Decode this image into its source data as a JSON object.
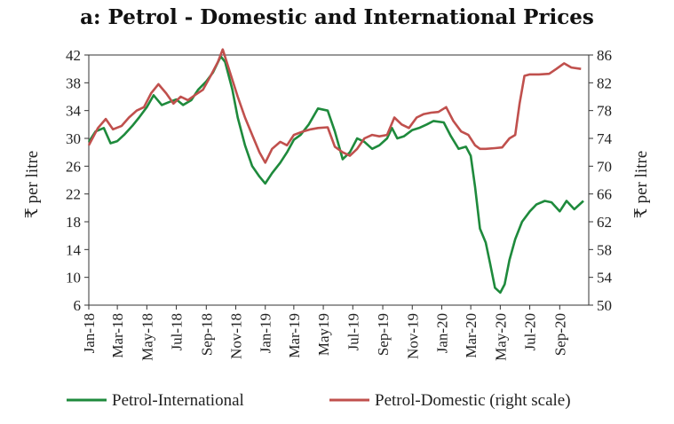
{
  "chart_data": {
    "type": "line",
    "title": "a: Petrol - Domestic and International Prices",
    "ylabel_left": "₹ per litre",
    "ylabel_right": "₹ per litre",
    "ylim_left": [
      6,
      42
    ],
    "ylim_right": [
      50,
      86
    ],
    "yticks_left": [
      6,
      10,
      14,
      18,
      22,
      26,
      30,
      34,
      38,
      42
    ],
    "yticks_right": [
      50,
      54,
      58,
      62,
      66,
      70,
      74,
      78,
      82,
      86
    ],
    "xlim": [
      "2018-01-01",
      "2020-10-31"
    ],
    "x_ticks": [
      "Jan-18",
      "Mar-18",
      "May-18",
      "Jul-18",
      "Sep-18",
      "Nov-18",
      "Jan-19",
      "Mar-19",
      "May19",
      "Jul-19",
      "Sep-19",
      "Nov-19",
      "Jan-20",
      "Mar-20",
      "May-20",
      "Jul-20",
      "Sep-20"
    ],
    "x_tick_dates": [
      "2018-01-01",
      "2018-03-01",
      "2018-05-01",
      "2018-07-01",
      "2018-09-01",
      "2018-11-01",
      "2019-01-01",
      "2019-03-01",
      "2019-05-01",
      "2019-07-01",
      "2019-09-01",
      "2019-11-01",
      "2020-01-01",
      "2020-03-01",
      "2020-05-01",
      "2020-07-01",
      "2020-09-01"
    ],
    "grid": false,
    "legend_position": "bottom",
    "series": [
      {
        "name": "Petrol-International",
        "axis": "left",
        "color": "#1e8a3c",
        "points": [
          [
            "2018-01-01",
            29.5
          ],
          [
            "2018-01-15",
            31.0
          ],
          [
            "2018-02-01",
            31.5
          ],
          [
            "2018-02-15",
            29.3
          ],
          [
            "2018-03-01",
            29.6
          ],
          [
            "2018-03-15",
            30.5
          ],
          [
            "2018-04-01",
            31.8
          ],
          [
            "2018-04-15",
            33.0
          ],
          [
            "2018-05-01",
            34.5
          ],
          [
            "2018-05-15",
            36.2
          ],
          [
            "2018-06-01",
            34.8
          ],
          [
            "2018-06-15",
            35.2
          ],
          [
            "2018-07-01",
            35.6
          ],
          [
            "2018-07-15",
            34.8
          ],
          [
            "2018-08-01",
            35.5
          ],
          [
            "2018-08-15",
            37.0
          ],
          [
            "2018-09-01",
            38.2
          ],
          [
            "2018-09-15",
            39.5
          ],
          [
            "2018-10-01",
            41.8
          ],
          [
            "2018-10-10",
            41.0
          ],
          [
            "2018-10-25",
            37.0
          ],
          [
            "2018-11-05",
            33.0
          ],
          [
            "2018-11-20",
            29.0
          ],
          [
            "2018-12-05",
            26.0
          ],
          [
            "2018-12-20",
            24.5
          ],
          [
            "2019-01-01",
            23.5
          ],
          [
            "2019-01-15",
            25.0
          ],
          [
            "2019-02-01",
            26.5
          ],
          [
            "2019-02-15",
            28.0
          ],
          [
            "2019-03-01",
            29.8
          ],
          [
            "2019-03-15",
            30.5
          ],
          [
            "2019-04-01",
            32.0
          ],
          [
            "2019-04-20",
            34.3
          ],
          [
            "2019-05-10",
            34.0
          ],
          [
            "2019-05-25",
            31.0
          ],
          [
            "2019-06-10",
            27.0
          ],
          [
            "2019-06-25",
            28.0
          ],
          [
            "2019-07-10",
            30.0
          ],
          [
            "2019-07-25",
            29.5
          ],
          [
            "2019-08-10",
            28.5
          ],
          [
            "2019-08-25",
            29.0
          ],
          [
            "2019-09-10",
            30.0
          ],
          [
            "2019-09-20",
            31.5
          ],
          [
            "2019-10-01",
            30.0
          ],
          [
            "2019-10-15",
            30.3
          ],
          [
            "2019-11-01",
            31.2
          ],
          [
            "2019-11-15",
            31.5
          ],
          [
            "2019-12-01",
            32.0
          ],
          [
            "2019-12-15",
            32.5
          ],
          [
            "2020-01-05",
            32.3
          ],
          [
            "2020-01-20",
            30.3
          ],
          [
            "2020-02-05",
            28.5
          ],
          [
            "2020-02-20",
            28.8
          ],
          [
            "2020-03-01",
            27.5
          ],
          [
            "2020-03-10",
            23.0
          ],
          [
            "2020-03-20",
            17.0
          ],
          [
            "2020-04-01",
            15.0
          ],
          [
            "2020-04-10",
            12.0
          ],
          [
            "2020-04-20",
            8.5
          ],
          [
            "2020-05-01",
            7.8
          ],
          [
            "2020-05-10",
            9.0
          ],
          [
            "2020-05-20",
            12.5
          ],
          [
            "2020-06-01",
            15.5
          ],
          [
            "2020-06-15",
            18.0
          ],
          [
            "2020-07-01",
            19.5
          ],
          [
            "2020-07-15",
            20.5
          ],
          [
            "2020-08-01",
            21.0
          ],
          [
            "2020-08-15",
            20.8
          ],
          [
            "2020-09-01",
            19.5
          ],
          [
            "2020-09-15",
            21.0
          ],
          [
            "2020-10-01",
            19.8
          ],
          [
            "2020-10-20",
            21.0
          ]
        ]
      },
      {
        "name": "Petrol-Domestic (right scale)",
        "axis": "right",
        "color": "#c0504d",
        "points": [
          [
            "2018-01-01",
            73.0
          ],
          [
            "2018-01-20",
            75.5
          ],
          [
            "2018-02-05",
            76.8
          ],
          [
            "2018-02-20",
            75.3
          ],
          [
            "2018-03-10",
            75.8
          ],
          [
            "2018-03-25",
            77.0
          ],
          [
            "2018-04-10",
            78.0
          ],
          [
            "2018-04-25",
            78.5
          ],
          [
            "2018-05-10",
            80.5
          ],
          [
            "2018-05-25",
            81.8
          ],
          [
            "2018-06-10",
            80.5
          ],
          [
            "2018-06-25",
            79.0
          ],
          [
            "2018-07-10",
            80.0
          ],
          [
            "2018-07-25",
            79.5
          ],
          [
            "2018-08-10",
            80.3
          ],
          [
            "2018-08-25",
            81.0
          ],
          [
            "2018-09-10",
            83.0
          ],
          [
            "2018-09-25",
            85.0
          ],
          [
            "2018-10-05",
            86.8
          ],
          [
            "2018-10-20",
            83.5
          ],
          [
            "2018-11-05",
            80.0
          ],
          [
            "2018-11-20",
            77.0
          ],
          [
            "2018-12-05",
            74.5
          ],
          [
            "2018-12-20",
            72.0
          ],
          [
            "2019-01-01",
            70.5
          ],
          [
            "2019-01-15",
            72.5
          ],
          [
            "2019-02-01",
            73.5
          ],
          [
            "2019-02-15",
            73.0
          ],
          [
            "2019-03-01",
            74.5
          ],
          [
            "2019-03-20",
            75.0
          ],
          [
            "2019-04-05",
            75.3
          ],
          [
            "2019-04-20",
            75.5
          ],
          [
            "2019-05-10",
            75.6
          ],
          [
            "2019-05-25",
            72.8
          ],
          [
            "2019-06-10",
            72.0
          ],
          [
            "2019-06-25",
            71.5
          ],
          [
            "2019-07-10",
            72.5
          ],
          [
            "2019-07-25",
            74.0
          ],
          [
            "2019-08-10",
            74.5
          ],
          [
            "2019-08-25",
            74.3
          ],
          [
            "2019-09-10",
            74.5
          ],
          [
            "2019-09-25",
            77.0
          ],
          [
            "2019-10-10",
            76.0
          ],
          [
            "2019-10-25",
            75.5
          ],
          [
            "2019-11-10",
            77.0
          ],
          [
            "2019-11-25",
            77.5
          ],
          [
            "2019-12-10",
            77.7
          ],
          [
            "2019-12-25",
            77.8
          ],
          [
            "2020-01-10",
            78.5
          ],
          [
            "2020-01-25",
            76.5
          ],
          [
            "2020-02-10",
            75.0
          ],
          [
            "2020-02-25",
            74.5
          ],
          [
            "2020-03-10",
            73.0
          ],
          [
            "2020-03-20",
            72.5
          ],
          [
            "2020-04-01",
            72.5
          ],
          [
            "2020-04-20",
            72.6
          ],
          [
            "2020-05-05",
            72.7
          ],
          [
            "2020-05-20",
            74.0
          ],
          [
            "2020-06-01",
            74.5
          ],
          [
            "2020-06-10",
            79.0
          ],
          [
            "2020-06-20",
            83.0
          ],
          [
            "2020-07-01",
            83.2
          ],
          [
            "2020-07-20",
            83.2
          ],
          [
            "2020-08-10",
            83.3
          ],
          [
            "2020-08-25",
            84.0
          ],
          [
            "2020-09-10",
            84.8
          ],
          [
            "2020-09-25",
            84.2
          ],
          [
            "2020-10-15",
            84.0
          ]
        ]
      }
    ]
  }
}
